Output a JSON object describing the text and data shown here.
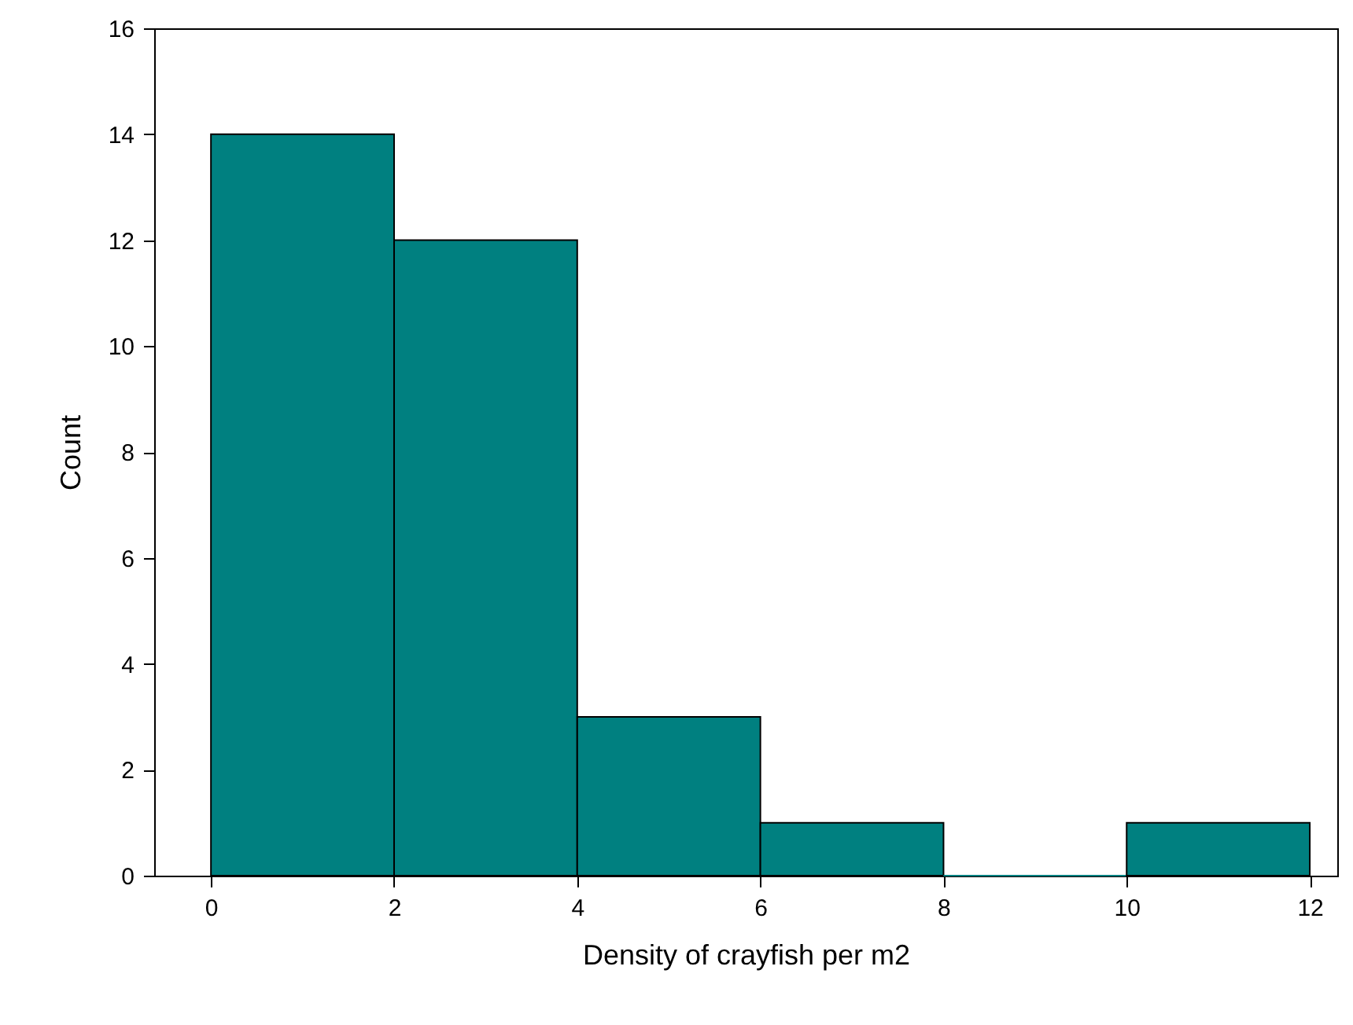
{
  "chart_data": {
    "type": "histogram",
    "xlabel": "Density of crayfish per m2",
    "ylabel": "Count",
    "bins": [
      0,
      2,
      4,
      6,
      8,
      10,
      12
    ],
    "values": [
      14,
      12,
      3,
      1,
      0,
      1
    ],
    "color": "#008080",
    "xlim": [
      -0.62,
      12.3
    ],
    "xticks": [
      0,
      2,
      4,
      6,
      8,
      10,
      12
    ],
    "ylim": [
      0,
      16
    ],
    "yticks": [
      0,
      2,
      4,
      6,
      8,
      10,
      12,
      14,
      16
    ],
    "grid": false
  }
}
